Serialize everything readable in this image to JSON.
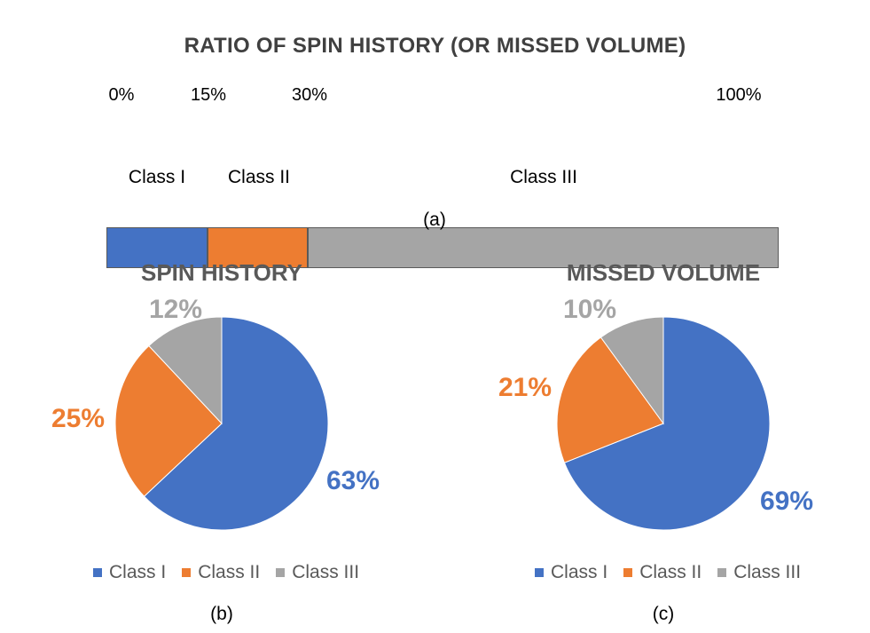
{
  "colors": {
    "class1": "#4472C4",
    "class2": "#ED7D31",
    "class3": "#A5A5A5"
  },
  "chart_data": [
    {
      "type": "bar",
      "title": "RATIO OF SPIN HISTORY (OR MISSED VOLUME)",
      "ticks": [
        "0%",
        "15%",
        "30%",
        "100%"
      ],
      "tick_values": [
        0,
        15,
        30,
        100
      ],
      "segments": [
        {
          "label": "Class I",
          "start": 0,
          "end": 15
        },
        {
          "label": "Class II",
          "start": 15,
          "end": 30
        },
        {
          "label": "Class III",
          "start": 30,
          "end": 100
        }
      ],
      "caption": "(a)"
    },
    {
      "type": "pie",
      "title": "SPIN HISTORY",
      "labels": [
        "Class I",
        "Class II",
        "Class III"
      ],
      "values": [
        63,
        25,
        12
      ],
      "value_labels": [
        "63%",
        "25%",
        "12%"
      ],
      "legend": [
        "Class I",
        "Class II",
        "Class III"
      ],
      "caption": "(b)"
    },
    {
      "type": "pie",
      "title": "MISSED VOLUME",
      "labels": [
        "Class I",
        "Class II",
        "Class III"
      ],
      "values": [
        69,
        21,
        10
      ],
      "value_labels": [
        "69%",
        "21%",
        "10%"
      ],
      "legend": [
        "Class I",
        "Class II",
        "Class III"
      ],
      "caption": "(c)"
    }
  ]
}
